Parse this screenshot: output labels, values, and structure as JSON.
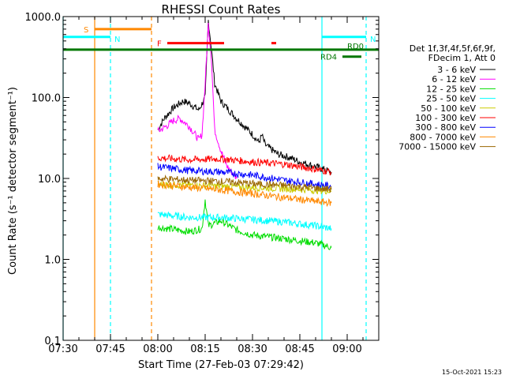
{
  "chart_data": {
    "type": "line",
    "title": "RHESSI Count Rates",
    "xlabel": "Start Time (27-Feb-03 07:29:42)",
    "ylabel": "Count Rate (s⁻¹ detector segment⁻¹)",
    "x_unit": "minutes after 07:30 UT",
    "xlim": [
      0,
      100
    ],
    "ylim": [
      0.1,
      1000
    ],
    "yscale": "log",
    "grid": false,
    "xticks": [
      {
        "value": 0,
        "label": "07:30"
      },
      {
        "value": 15,
        "label": "07:45"
      },
      {
        "value": 30,
        "label": "08:00"
      },
      {
        "value": 45,
        "label": "08:15"
      },
      {
        "value": 60,
        "label": "08:30"
      },
      {
        "value": 75,
        "label": "08:45"
      },
      {
        "value": 90,
        "label": "09:00"
      }
    ],
    "yticks": [
      {
        "value": 0.1,
        "label": "0.1"
      },
      {
        "value": 1,
        "label": "1.0"
      },
      {
        "value": 10,
        "label": "10.0"
      },
      {
        "value": 100,
        "label": "100.0"
      },
      {
        "value": 1000,
        "label": "1000.0"
      }
    ],
    "legend_title": [
      "Det 1f,3f,4f,5f,6f,9f,",
      "FDecim 1, Att 0"
    ],
    "legend_position": "right",
    "series": [
      {
        "name": "3 - 6 keV",
        "color": "#000000",
        "x": [
          30,
          32,
          35,
          38,
          40,
          43,
          45,
          46,
          47,
          48,
          50,
          55,
          60,
          62,
          63,
          64,
          68,
          72,
          75,
          80,
          85
        ],
        "y": [
          40,
          55,
          75,
          90,
          85,
          70,
          100,
          900,
          400,
          150,
          90,
          55,
          35,
          28,
          34,
          26,
          20,
          18,
          16,
          14,
          12
        ]
      },
      {
        "name": "6 - 12 keV",
        "color": "#ff00ff",
        "x": [
          30,
          33,
          35,
          37,
          40,
          43,
          44,
          45,
          46,
          47,
          48,
          50,
          52,
          55
        ],
        "y": [
          38,
          45,
          52,
          55,
          44,
          30,
          35,
          150,
          800,
          300,
          40,
          22,
          14,
          10
        ]
      },
      {
        "name": "12 - 25 keV",
        "color": "#00dd00",
        "x": [
          30,
          40,
          44,
          45,
          46,
          50,
          55,
          60,
          70,
          80,
          85
        ],
        "y": [
          2.5,
          2.2,
          2.4,
          5.5,
          2.6,
          3.0,
          2.3,
          2.0,
          1.8,
          1.6,
          1.4
        ]
      },
      {
        "name": "25 - 50 keV",
        "color": "#00ffff",
        "x": [
          30,
          40,
          50,
          60,
          70,
          80,
          85
        ],
        "y": [
          3.6,
          3.3,
          3.3,
          3.1,
          2.9,
          2.6,
          2.4
        ]
      },
      {
        "name": "50 - 100 keV",
        "color": "#cccc00",
        "x": [
          30,
          50,
          70,
          85
        ],
        "y": [
          8.5,
          8.0,
          7.5,
          7.0
        ]
      },
      {
        "name": "100 - 300 keV",
        "color": "#ff0000",
        "x": [
          30,
          40,
          50,
          60,
          70,
          80,
          85
        ],
        "y": [
          18,
          17,
          17.5,
          16,
          15,
          13,
          12
        ]
      },
      {
        "name": "300 - 800 keV",
        "color": "#0000ff",
        "x": [
          30,
          40,
          50,
          60,
          70,
          80,
          85
        ],
        "y": [
          14,
          12.5,
          12,
          11,
          9.5,
          8.5,
          8
        ]
      },
      {
        "name": "800 - 7000 keV",
        "color": "#ff8800",
        "x": [
          30,
          40,
          50,
          60,
          70,
          80,
          85
        ],
        "y": [
          8.5,
          7.8,
          7.2,
          6.5,
          5.8,
          5.2,
          5.0
        ]
      },
      {
        "name": "7000 - 15000 keV",
        "color": "#996600",
        "x": [
          30,
          40,
          50,
          60,
          70,
          80,
          85
        ],
        "y": [
          10,
          9.5,
          9.2,
          8.6,
          8.2,
          7.6,
          7.3
        ]
      }
    ],
    "vertical_lines": [
      {
        "x": 0,
        "color": "#00ffff",
        "style": "solid"
      },
      {
        "x": 10,
        "color": "#ff8800",
        "style": "solid"
      },
      {
        "x": 15,
        "color": "#00ffff",
        "style": "dashed"
      },
      {
        "x": 28,
        "color": "#ff8800",
        "style": "dashed"
      },
      {
        "x": 82,
        "color": "#00ffff",
        "style": "solid"
      },
      {
        "x": 96,
        "color": "#00ffff",
        "style": "dashed"
      }
    ],
    "flag_bars": [
      {
        "label": "S",
        "color": "#ff8800",
        "x_start": 10,
        "x_end": 28,
        "y": 700
      },
      {
        "label": "N",
        "color": "#00ffff",
        "x_start": 0,
        "x_end": 15,
        "y": 560
      },
      {
        "label": "N",
        "color": "#00ffff",
        "x_start": 82,
        "x_end": 96,
        "y": 560
      },
      {
        "label": "F",
        "color": "#ff0000",
        "x_start": 33,
        "x_end": 51,
        "y": 470
      },
      {
        "label": "",
        "color": "#ff0000",
        "x_start": 66,
        "x_end": 67.5,
        "y": 470
      },
      {
        "label": "RD0",
        "color": "#007700",
        "x_start": 0,
        "x_end": 100,
        "y": 390
      },
      {
        "label": "RD4",
        "color": "#007700",
        "x_start": 88.5,
        "x_end": 94.5,
        "y": 320
      }
    ]
  },
  "footer": {
    "timestamp": "15-Oct-2021 15:23"
  }
}
